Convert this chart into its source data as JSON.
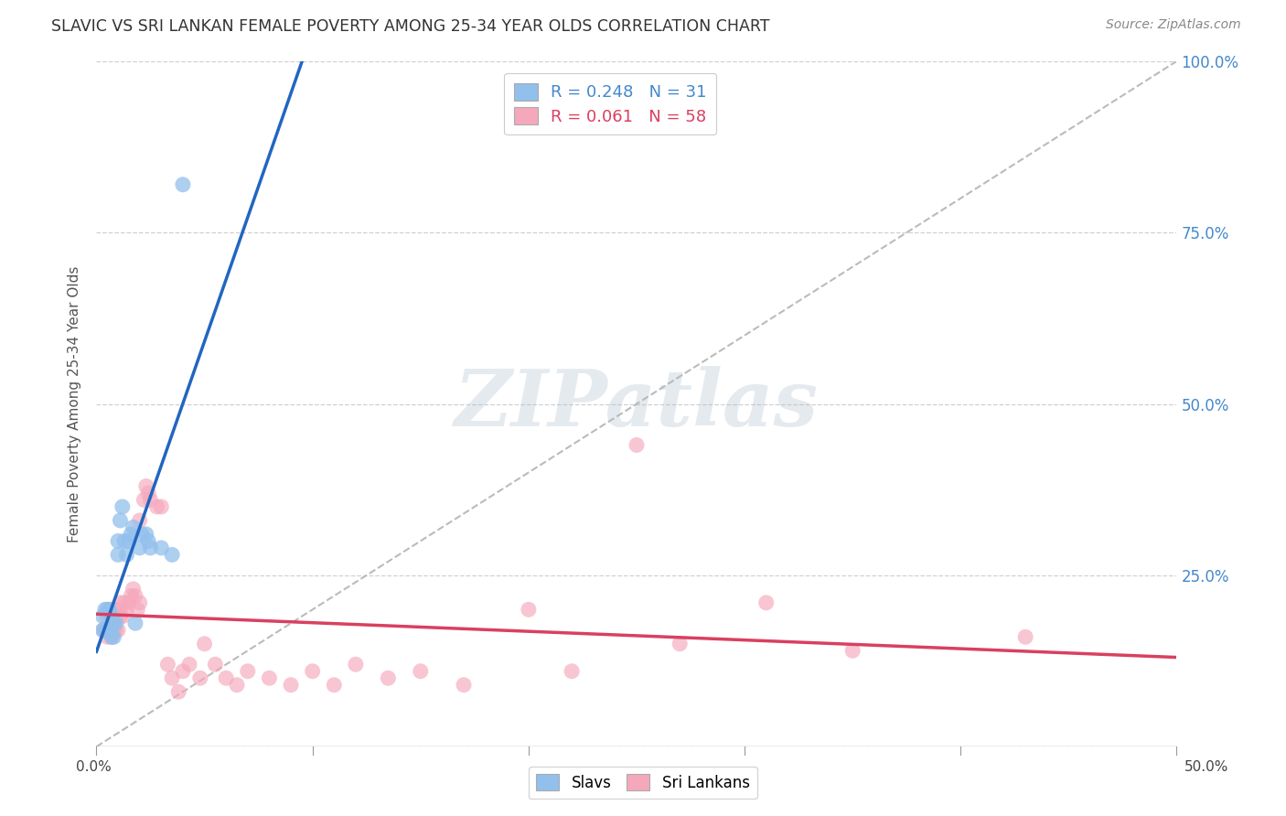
{
  "title": "SLAVIC VS SRI LANKAN FEMALE POVERTY AMONG 25-34 YEAR OLDS CORRELATION CHART",
  "source": "Source: ZipAtlas.com",
  "ylabel": "Female Poverty Among 25-34 Year Olds",
  "xlim": [
    0.0,
    0.5
  ],
  "ylim": [
    0.0,
    1.0
  ],
  "yticks": [
    0.0,
    0.25,
    0.5,
    0.75,
    1.0
  ],
  "ytick_labels_right": [
    "",
    "25.0%",
    "50.0%",
    "75.0%",
    "100.0%"
  ],
  "slavs_R": "0.248",
  "slavs_N": "31",
  "srilankans_R": "0.061",
  "srilankans_N": "58",
  "slavs_color": "#92C0EC",
  "srilankans_color": "#F5A8BC",
  "slavs_line_color": "#2166C0",
  "srilankans_line_color": "#D94060",
  "diagonal_color": "#BBBBBB",
  "watermark_text": "ZIPatlas",
  "background_color": "#FFFFFF",
  "grid_color": "#D0D0D0",
  "right_tick_color": "#4488CC",
  "slavs_x": [
    0.003,
    0.003,
    0.004,
    0.004,
    0.005,
    0.005,
    0.006,
    0.006,
    0.007,
    0.007,
    0.008,
    0.008,
    0.009,
    0.01,
    0.01,
    0.011,
    0.012,
    0.013,
    0.014,
    0.015,
    0.016,
    0.017,
    0.018,
    0.02,
    0.021,
    0.023,
    0.024,
    0.025,
    0.03,
    0.035,
    0.04
  ],
  "slavs_y": [
    0.17,
    0.19,
    0.17,
    0.2,
    0.17,
    0.2,
    0.17,
    0.2,
    0.16,
    0.19,
    0.16,
    0.18,
    0.18,
    0.28,
    0.3,
    0.33,
    0.35,
    0.3,
    0.28,
    0.3,
    0.31,
    0.32,
    0.18,
    0.29,
    0.31,
    0.31,
    0.3,
    0.29,
    0.29,
    0.28,
    0.82
  ],
  "srilankans_x": [
    0.003,
    0.004,
    0.005,
    0.005,
    0.006,
    0.006,
    0.007,
    0.007,
    0.008,
    0.008,
    0.009,
    0.009,
    0.01,
    0.01,
    0.011,
    0.011,
    0.012,
    0.013,
    0.014,
    0.015,
    0.016,
    0.017,
    0.018,
    0.019,
    0.02,
    0.02,
    0.022,
    0.023,
    0.024,
    0.025,
    0.028,
    0.03,
    0.033,
    0.035,
    0.038,
    0.04,
    0.043,
    0.048,
    0.05,
    0.055,
    0.06,
    0.065,
    0.07,
    0.08,
    0.09,
    0.1,
    0.11,
    0.12,
    0.135,
    0.15,
    0.17,
    0.2,
    0.22,
    0.25,
    0.27,
    0.31,
    0.35,
    0.43
  ],
  "srilankans_y": [
    0.17,
    0.17,
    0.16,
    0.19,
    0.17,
    0.2,
    0.16,
    0.19,
    0.17,
    0.2,
    0.17,
    0.19,
    0.17,
    0.2,
    0.19,
    0.21,
    0.19,
    0.21,
    0.2,
    0.21,
    0.22,
    0.23,
    0.22,
    0.2,
    0.21,
    0.33,
    0.36,
    0.38,
    0.37,
    0.36,
    0.35,
    0.35,
    0.12,
    0.1,
    0.08,
    0.11,
    0.12,
    0.1,
    0.15,
    0.12,
    0.1,
    0.09,
    0.11,
    0.1,
    0.09,
    0.11,
    0.09,
    0.12,
    0.1,
    0.11,
    0.09,
    0.2,
    0.11,
    0.44,
    0.15,
    0.21,
    0.14,
    0.16
  ]
}
